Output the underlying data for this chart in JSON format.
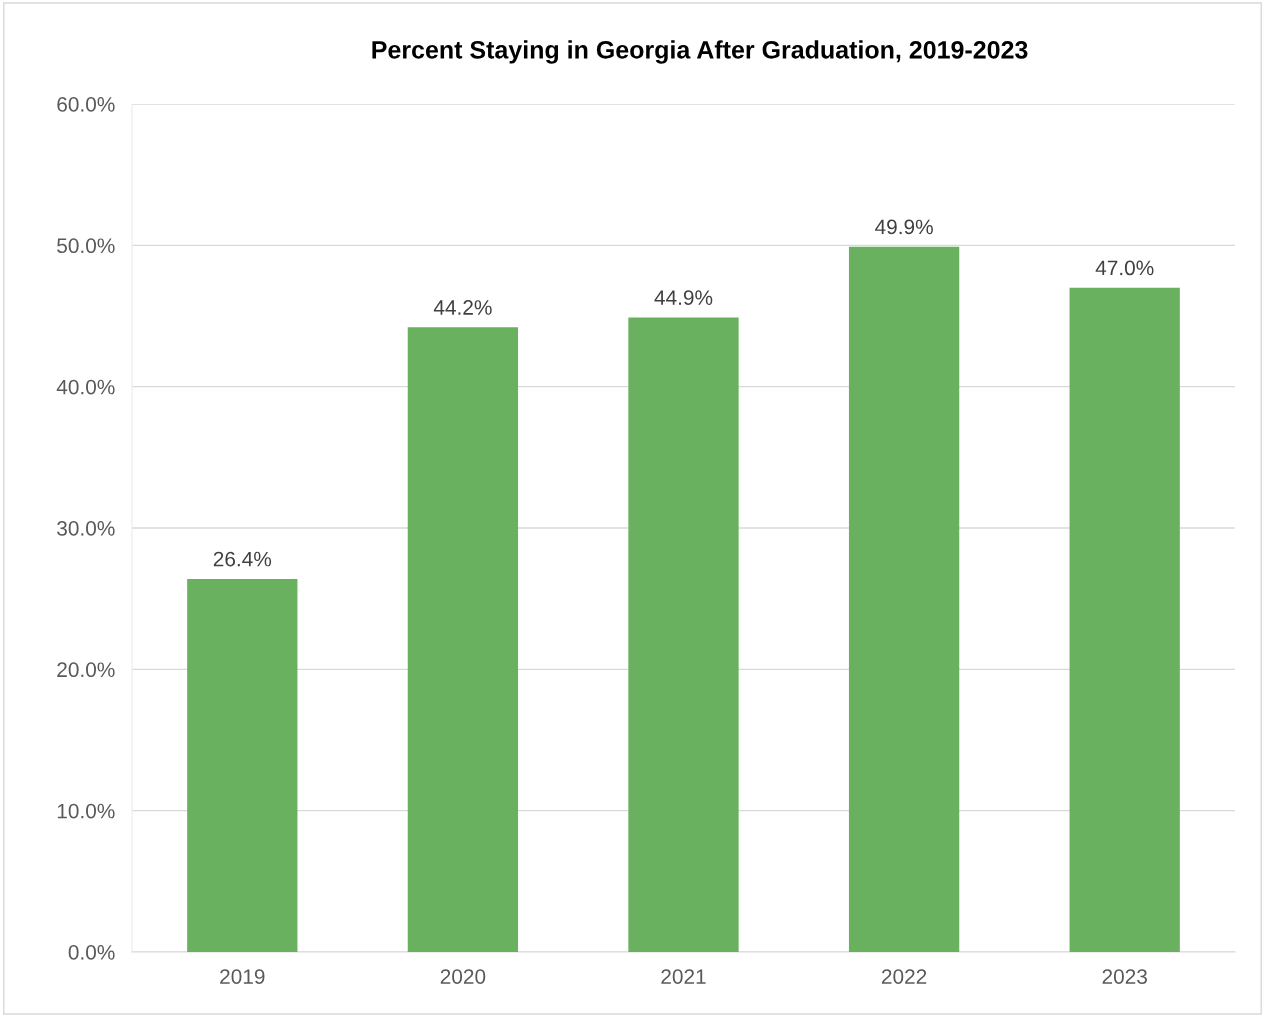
{
  "chart_data": {
    "type": "bar",
    "title": "Percent Staying in Georgia After Graduation, 2019-2023",
    "categories": [
      "2019",
      "2020",
      "2021",
      "2022",
      "2023"
    ],
    "values": [
      26.4,
      44.2,
      44.9,
      49.9,
      47.0
    ],
    "value_labels": [
      "26.4%",
      "44.2%",
      "44.9%",
      "49.9%",
      "47.0%"
    ],
    "color": "#6ab15f",
    "ylim": [
      0,
      60
    ],
    "yticks": [
      {
        "value": 0,
        "label": "0.0%"
      },
      {
        "value": 10,
        "label": "10.0%"
      },
      {
        "value": 20,
        "label": "20.0%"
      },
      {
        "value": 30,
        "label": "30.0%"
      },
      {
        "value": 40,
        "label": "40.0%"
      },
      {
        "value": 50,
        "label": "50.0%"
      },
      {
        "value": 60,
        "label": "60.0%"
      }
    ],
    "grid": "y"
  }
}
